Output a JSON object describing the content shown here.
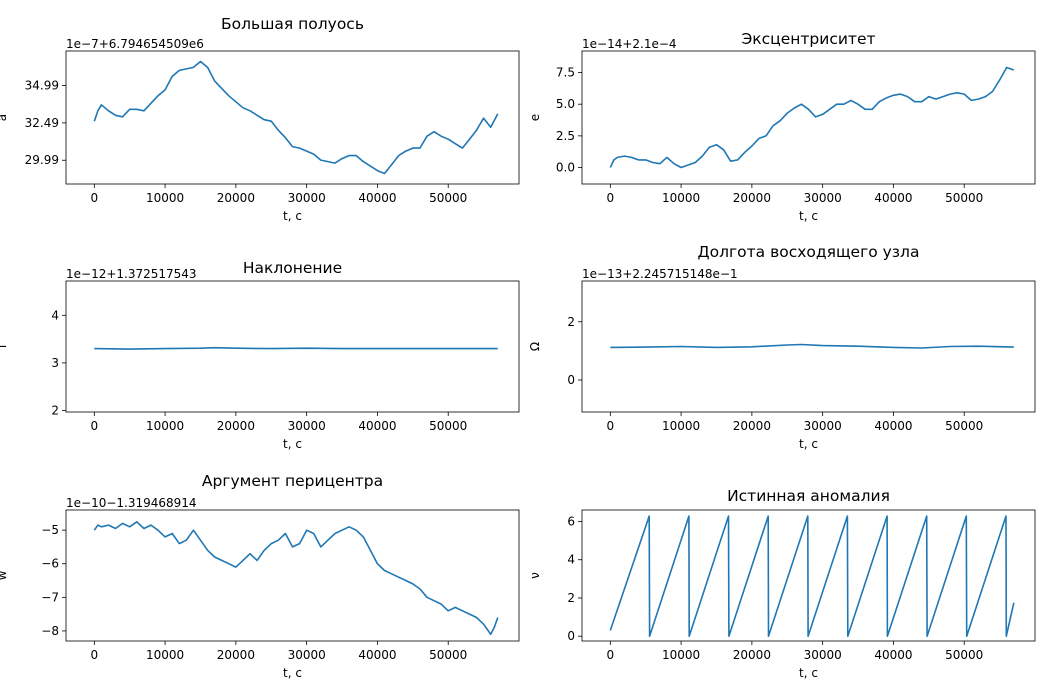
{
  "chart_data": [
    {
      "type": "line",
      "title": "Большая полуось",
      "xlabel": "t, с",
      "ylabel": "a",
      "offset_label": "1e−7+6.794654509e6",
      "xlim": [
        -4000,
        60000
      ],
      "ylim": [
        28.4,
        37.3
      ],
      "xticks": [
        0,
        10000,
        20000,
        30000,
        40000,
        50000
      ],
      "yticks": [
        29.99,
        32.49,
        34.99
      ],
      "ytick_labels": [
        "29.99",
        "32.49",
        "34.99"
      ],
      "series": [
        {
          "x": [
            0,
            500,
            1000,
            2000,
            3000,
            4000,
            5000,
            6000,
            7000,
            8000,
            9000,
            10000,
            11000,
            12000,
            13000,
            14000,
            15000,
            16000,
            17000,
            18000,
            19000,
            20000,
            21000,
            22000,
            23000,
            24000,
            25000,
            26000,
            27000,
            28000,
            29000,
            30000,
            31000,
            32000,
            33000,
            34000,
            35000,
            36000,
            37000,
            38000,
            39000,
            40000,
            41000,
            42000,
            43000,
            44000,
            45000,
            46000,
            47000,
            48000,
            49000,
            50000,
            51000,
            52000,
            53000,
            54000,
            55000,
            56000,
            57000
          ],
          "y": [
            32.6,
            33.3,
            33.7,
            33.3,
            33.0,
            32.9,
            33.4,
            33.4,
            33.3,
            33.8,
            34.3,
            34.7,
            35.6,
            36.0,
            36.1,
            36.2,
            36.6,
            36.2,
            35.3,
            34.8,
            34.3,
            33.9,
            33.5,
            33.3,
            33.0,
            32.7,
            32.6,
            32.0,
            31.5,
            30.9,
            30.8,
            30.6,
            30.4,
            30.0,
            29.9,
            29.8,
            30.1,
            30.3,
            30.3,
            29.9,
            29.6,
            29.3,
            29.1,
            29.7,
            30.3,
            30.6,
            30.8,
            30.8,
            31.6,
            31.9,
            31.6,
            31.4,
            31.1,
            30.8,
            31.4,
            32.0,
            32.8,
            32.2,
            33.1
          ]
        }
      ]
    },
    {
      "type": "line",
      "title": "Эксцентриситет",
      "xlabel": "t, с",
      "ylabel": "e",
      "offset_label": "1e−14+2.1e−4",
      "xlim": [
        -4000,
        60000
      ],
      "ylim": [
        -1.3,
        9.2
      ],
      "xticks": [
        0,
        10000,
        20000,
        30000,
        40000,
        50000
      ],
      "yticks": [
        0.0,
        2.5,
        5.0,
        7.5
      ],
      "ytick_labels": [
        "0.0",
        "2.5",
        "5.0",
        "7.5"
      ],
      "series": [
        {
          "x": [
            0,
            500,
            1000,
            2000,
            3000,
            4000,
            5000,
            6000,
            7000,
            8000,
            9000,
            10000,
            11000,
            12000,
            13000,
            14000,
            15000,
            16000,
            17000,
            18000,
            19000,
            20000,
            21000,
            22000,
            23000,
            24000,
            25000,
            26000,
            27000,
            28000,
            29000,
            30000,
            31000,
            32000,
            33000,
            34000,
            35000,
            36000,
            37000,
            38000,
            39000,
            40000,
            41000,
            42000,
            43000,
            44000,
            45000,
            46000,
            47000,
            48000,
            49000,
            50000,
            51000,
            52000,
            53000,
            54000,
            55000,
            56000,
            57000
          ],
          "y": [
            0.0,
            0.6,
            0.8,
            0.9,
            0.8,
            0.6,
            0.6,
            0.4,
            0.3,
            0.8,
            0.3,
            0.0,
            0.2,
            0.4,
            0.9,
            1.6,
            1.8,
            1.4,
            0.5,
            0.6,
            1.2,
            1.7,
            2.3,
            2.5,
            3.3,
            3.7,
            4.3,
            4.7,
            5.0,
            4.6,
            4.0,
            4.2,
            4.6,
            5.0,
            5.0,
            5.3,
            5.0,
            4.6,
            4.6,
            5.2,
            5.5,
            5.7,
            5.8,
            5.6,
            5.2,
            5.2,
            5.6,
            5.4,
            5.6,
            5.8,
            5.9,
            5.8,
            5.3,
            5.4,
            5.6,
            6.0,
            6.9,
            7.9,
            7.7
          ]
        }
      ]
    },
    {
      "type": "line",
      "title": "Наклонение",
      "xlabel": "t, с",
      "ylabel": "i",
      "offset_label": "1e−12+1.372517543",
      "xlim": [
        -4000,
        60000
      ],
      "ylim": [
        1.97,
        4.72
      ],
      "xticks": [
        0,
        10000,
        20000,
        30000,
        40000,
        50000
      ],
      "yticks": [
        2,
        3,
        4
      ],
      "ytick_labels": [
        "2",
        "3",
        "4"
      ],
      "series": [
        {
          "x": [
            0,
            5000,
            10000,
            15000,
            17000,
            20000,
            25000,
            30000,
            35000,
            40000,
            45000,
            50000,
            55000,
            57000
          ],
          "y": [
            3.3,
            3.29,
            3.3,
            3.31,
            3.32,
            3.31,
            3.3,
            3.31,
            3.3,
            3.3,
            3.3,
            3.3,
            3.3,
            3.3
          ]
        }
      ]
    },
    {
      "type": "line",
      "title": "Долгота восходящего узла",
      "xlabel": "t, с",
      "ylabel": "Ω",
      "offset_label": "1e−13+2.245715148e−1",
      "xlim": [
        -4000,
        60000
      ],
      "ylim": [
        -1.1,
        3.4
      ],
      "xticks": [
        0,
        10000,
        20000,
        30000,
        40000,
        50000
      ],
      "yticks": [
        0,
        2
      ],
      "ytick_labels": [
        "0",
        "2"
      ],
      "series": [
        {
          "x": [
            0,
            5000,
            10000,
            15000,
            20000,
            25000,
            27000,
            30000,
            35000,
            40000,
            44000,
            48000,
            52000,
            57000
          ],
          "y": [
            1.12,
            1.13,
            1.15,
            1.12,
            1.14,
            1.2,
            1.22,
            1.18,
            1.16,
            1.12,
            1.1,
            1.15,
            1.16,
            1.13
          ]
        }
      ]
    },
    {
      "type": "line",
      "title": "Аргумент перицентра",
      "xlabel": "t, с",
      "ylabel": "w",
      "offset_label": "1e−10−1.319468914",
      "xlim": [
        -4000,
        60000
      ],
      "ylim": [
        -8.3,
        -4.4
      ],
      "xticks": [
        0,
        10000,
        20000,
        30000,
        40000,
        50000
      ],
      "yticks": [
        -8,
        -7,
        -6,
        -5
      ],
      "ytick_labels": [
        "−8",
        "−7",
        "−6",
        "−5"
      ],
      "series": [
        {
          "x": [
            0,
            500,
            1000,
            2000,
            3000,
            4000,
            5000,
            6000,
            7000,
            8000,
            9000,
            10000,
            11000,
            12000,
            13000,
            14000,
            15000,
            16000,
            17000,
            18000,
            19000,
            20000,
            21000,
            22000,
            23000,
            24000,
            25000,
            26000,
            27000,
            28000,
            29000,
            30000,
            31000,
            32000,
            33000,
            34000,
            35000,
            36000,
            37000,
            38000,
            39000,
            40000,
            41000,
            42000,
            43000,
            44000,
            45000,
            46000,
            47000,
            48000,
            49000,
            50000,
            51000,
            52000,
            53000,
            54000,
            55000,
            56000,
            56500,
            57000
          ],
          "y": [
            -5.0,
            -4.85,
            -4.9,
            -4.85,
            -4.95,
            -4.8,
            -4.9,
            -4.75,
            -4.95,
            -4.85,
            -5.0,
            -5.2,
            -5.1,
            -5.4,
            -5.3,
            -5.0,
            -5.3,
            -5.6,
            -5.8,
            -5.9,
            -6.0,
            -6.1,
            -5.9,
            -5.7,
            -5.9,
            -5.6,
            -5.4,
            -5.3,
            -5.1,
            -5.5,
            -5.4,
            -5.0,
            -5.1,
            -5.5,
            -5.3,
            -5.1,
            -5.0,
            -4.9,
            -5.0,
            -5.2,
            -5.6,
            -6.0,
            -6.2,
            -6.3,
            -6.4,
            -6.5,
            -6.6,
            -6.75,
            -7.0,
            -7.1,
            -7.2,
            -7.4,
            -7.3,
            -7.4,
            -7.5,
            -7.6,
            -7.8,
            -8.1,
            -7.9,
            -7.6
          ]
        }
      ]
    },
    {
      "type": "line",
      "title": "Истинная аномалия",
      "xlabel": "t, с",
      "ylabel": "ν",
      "offset_label": "",
      "xlim": [
        -4000,
        60000
      ],
      "ylim": [
        -0.25,
        6.6
      ],
      "xticks": [
        0,
        10000,
        20000,
        30000,
        40000,
        50000
      ],
      "yticks": [
        0,
        2,
        4,
        6
      ],
      "ytick_labels": [
        "0",
        "2",
        "4",
        "6"
      ],
      "series": [
        {
          "x": [
            0,
            5500,
            5550,
            11100,
            11150,
            16700,
            16750,
            22300,
            22350,
            27900,
            27950,
            33500,
            33550,
            39100,
            39150,
            44700,
            44750,
            50300,
            50350,
            55900,
            55950,
            57000
          ],
          "y": [
            0.3,
            6.28,
            0.0,
            6.28,
            0.0,
            6.28,
            0.0,
            6.28,
            0.0,
            6.28,
            0.0,
            6.28,
            0.0,
            6.28,
            0.0,
            6.28,
            0.0,
            6.28,
            0.0,
            6.28,
            0.0,
            1.75
          ]
        }
      ]
    }
  ]
}
